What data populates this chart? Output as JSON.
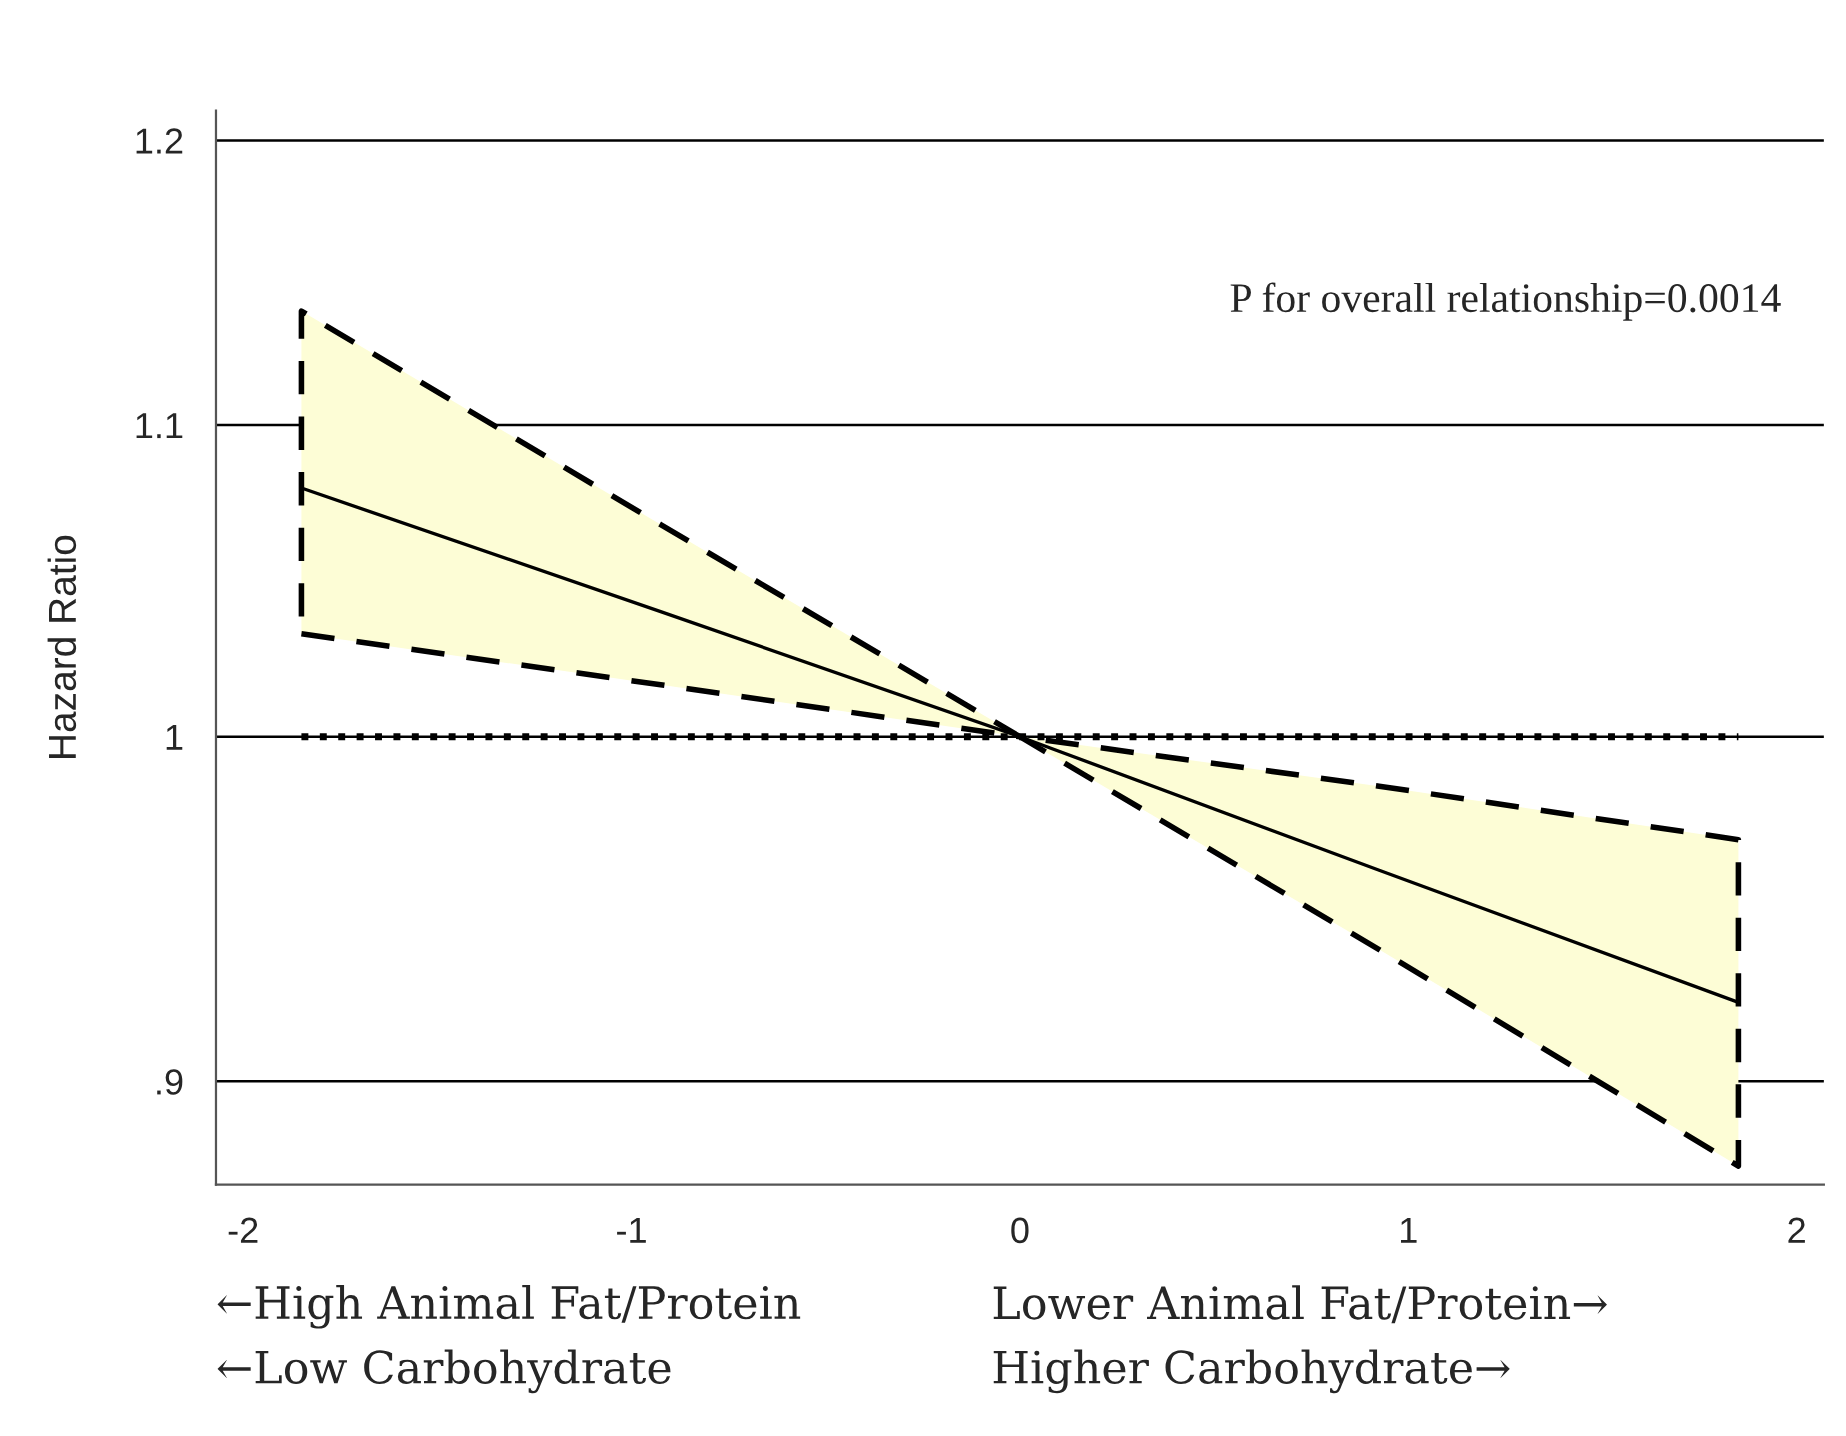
{
  "chart_data": {
    "type": "line",
    "ylabel": "Hazard Ratio",
    "x": [
      -1.85,
      -0.925,
      0,
      0.925,
      1.85
    ],
    "series": [
      {
        "color": "#000000",
        "values": [
          1.079,
          1.039,
          1.0,
          0.96,
          0.922
        ],
        "lower": [
          1.032,
          1.016,
          1.0,
          0.937,
          0.877
        ],
        "upper": [
          1.139,
          1.067,
          1.0,
          0.985,
          0.969
        ]
      }
    ],
    "log": "y",
    "xlim": [
      -2.07,
      2.07
    ],
    "xticks": [
      -2,
      -1,
      0,
      1,
      2
    ],
    "ylim": [
      0.872,
      1.211
    ],
    "yticks": [
      {
        "value": 0.9,
        "label": ".9"
      },
      1,
      1.1,
      1.2
    ],
    "grid": "y",
    "line_style": "solid",
    "marker": "none",
    "legend": false,
    "ref_lines": [
      {
        "axis": "y",
        "value": 1,
        "line_style": "dotted",
        "color": "#000000"
      }
    ],
    "annotations": [
      "P for overall relationship=0.0014",
      "←High Animal Fat/Protein",
      "←Low Carbohydrate",
      "Lower Animal Fat/Protein→",
      "Higher Carbohydrate→"
    ]
  }
}
